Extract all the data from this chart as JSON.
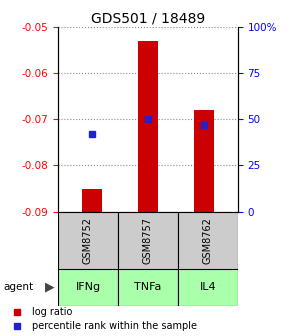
{
  "title": "GDS501 / 18489",
  "samples": [
    "GSM8752",
    "GSM8757",
    "GSM8762"
  ],
  "agents": [
    "IFNg",
    "TNFa",
    "IL4"
  ],
  "log_ratios": [
    -0.085,
    -0.053,
    -0.068
  ],
  "percentile_ranks": [
    42,
    50,
    47
  ],
  "ylim": [
    -0.09,
    -0.05
  ],
  "yticks": [
    -0.09,
    -0.08,
    -0.07,
    -0.06,
    -0.05
  ],
  "right_yticks": [
    0,
    25,
    50,
    75,
    100
  ],
  "right_ylim": [
    0,
    100
  ],
  "bar_color": "#cc0000",
  "dot_color": "#2222cc",
  "agent_color": "#aaffaa",
  "sample_bg": "#cccccc",
  "grid_color": "#888888",
  "title_fontsize": 10,
  "tick_fontsize": 7.5,
  "legend_fontsize": 7
}
